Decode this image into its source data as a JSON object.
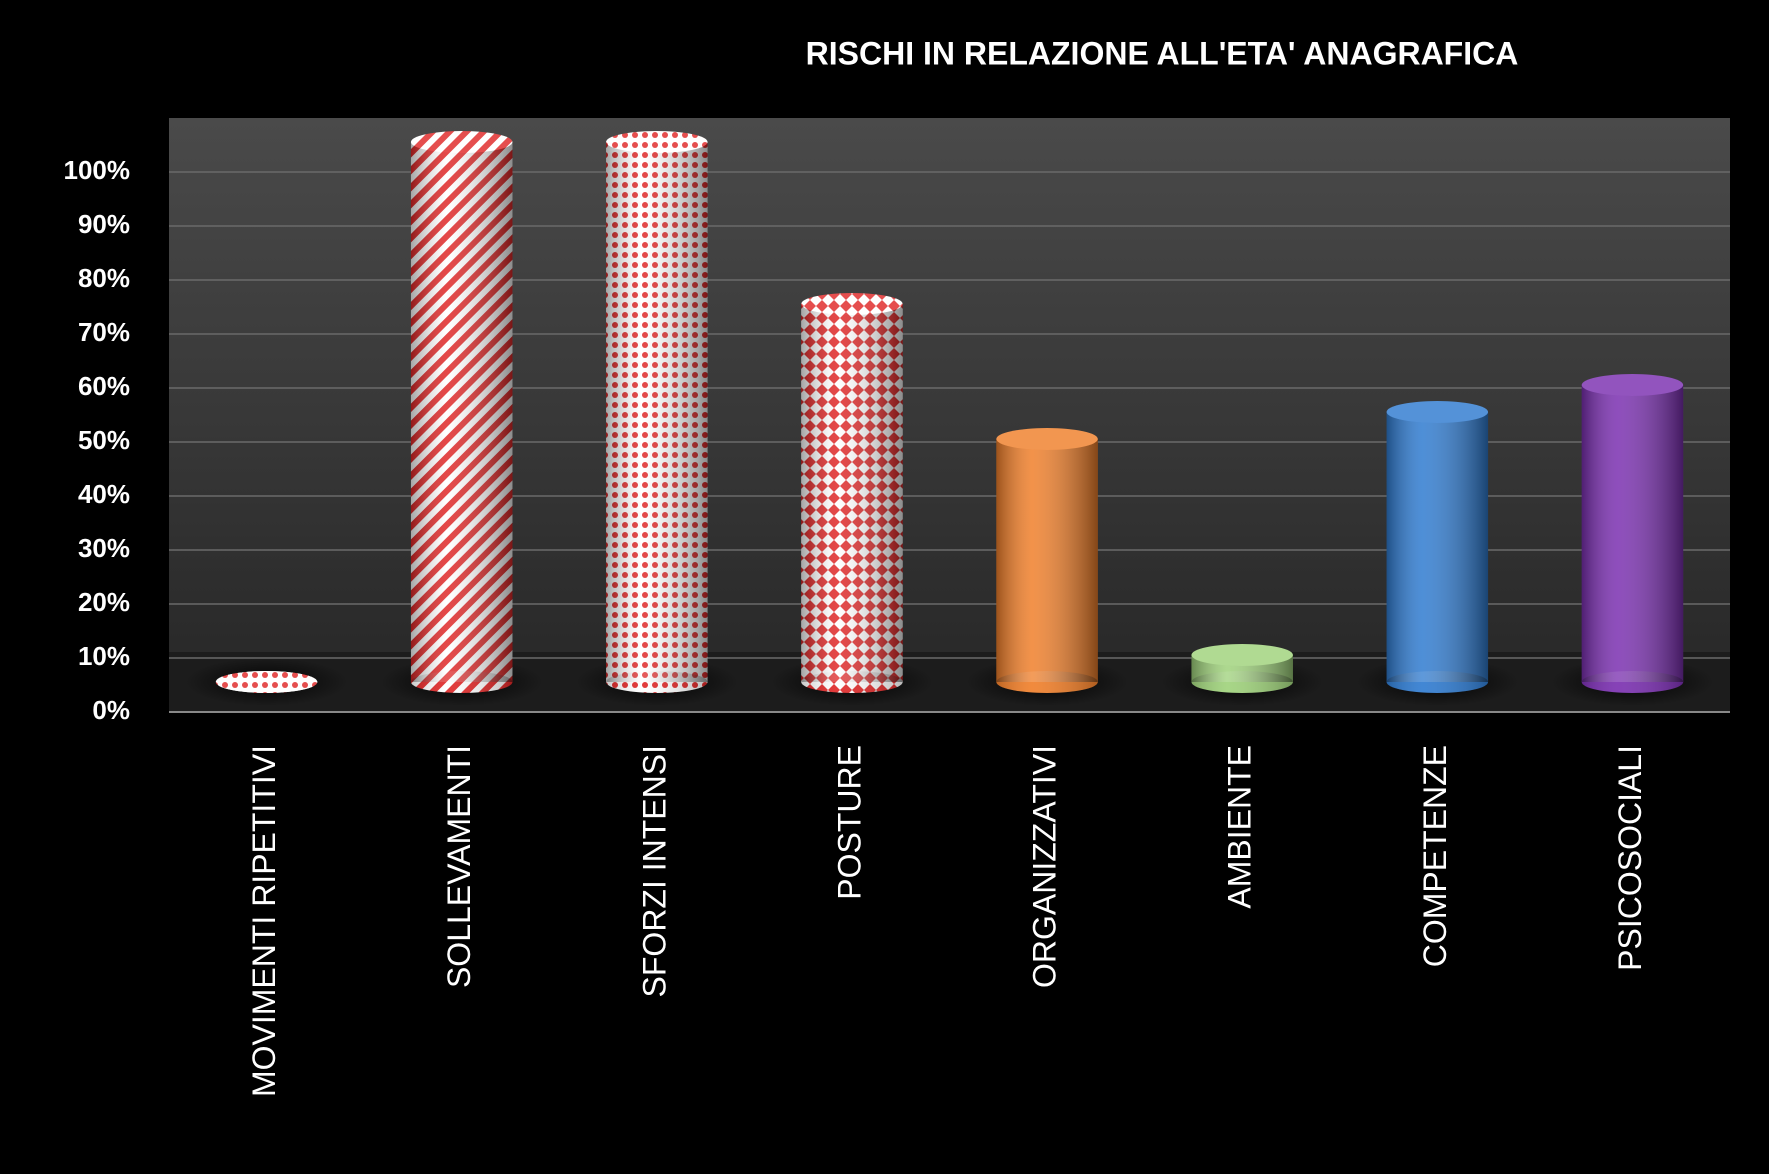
{
  "chart_data": {
    "type": "bar",
    "title": "RISCHI IN RELAZIONE ALL'ETA' ANAGRAFICA",
    "categories": [
      "MOVIMENTI RIPETITIVI",
      "SOLLEVAMENTI",
      "SFORZI INTENSI",
      "POSTURE",
      "ORGANIZZATIVI",
      "AMBIENTE",
      "COMPETENZE",
      "PSICOSOCIALI"
    ],
    "values": [
      0,
      100,
      100,
      70,
      45,
      5,
      50,
      55
    ],
    "colors": [
      "#e02828",
      "#e02828",
      "#e02828",
      "#e02828",
      "#f07f2a",
      "#9fd27b",
      "#2f7bd0",
      "#7a2fb0"
    ],
    "patterns": [
      "dots",
      "stripes",
      "dots",
      "diamonds",
      "none",
      "none",
      "none",
      "none"
    ],
    "ylim": [
      0,
      110
    ],
    "yticks": [
      {
        "value": 0,
        "label": "0%"
      },
      {
        "value": 10,
        "label": "10%"
      },
      {
        "value": 20,
        "label": "20%"
      },
      {
        "value": 30,
        "label": "30%"
      },
      {
        "value": 40,
        "label": "40%"
      },
      {
        "value": 50,
        "label": "50%"
      },
      {
        "value": 60,
        "label": "60%"
      },
      {
        "value": 70,
        "label": "70%"
      },
      {
        "value": 80,
        "label": "80%"
      },
      {
        "value": 90,
        "label": "90%"
      },
      {
        "value": 100,
        "label": "100%"
      }
    ],
    "grid": true
  }
}
